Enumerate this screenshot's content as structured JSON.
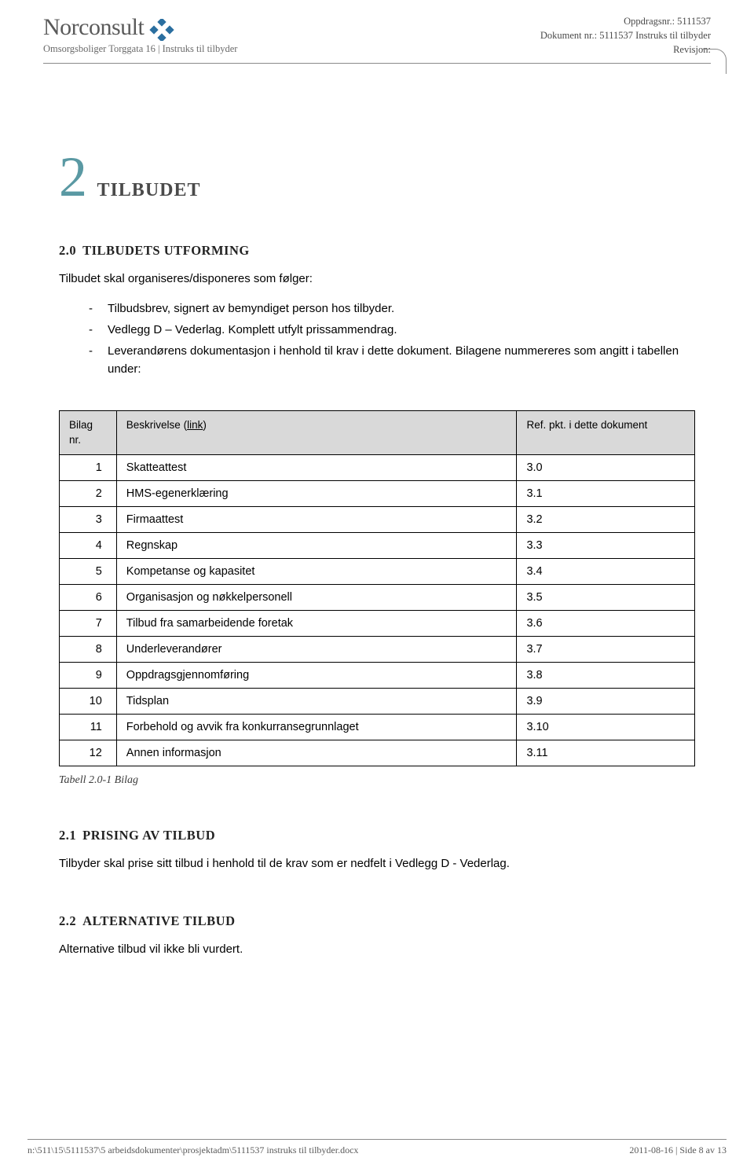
{
  "header": {
    "logo_text": "Norconsult",
    "subtitle": "Omsorgsboliger Torggata 16 | Instruks til tilbyder",
    "meta_line1": "Oppdragsnr.: 5111537",
    "meta_line2": "Dokument nr.: 5111537 Instruks til tilbyder",
    "meta_line3": "Revisjon:",
    "logo_color": "#2b6fa0"
  },
  "chapter": {
    "number": "2",
    "title": "TILBUDET"
  },
  "section20": {
    "num": "2.0",
    "title": "TILBUDETS UTFORMING",
    "intro": "Tilbudet skal organiseres/disponeres som følger:",
    "bullets": [
      "Tilbudsbrev, signert av bemyndiget person hos tilbyder.",
      "Vedlegg D – Vederlag. Komplett utfylt prissammendrag.",
      "Leverandørens dokumentasjon i henhold til krav i dette dokument. Bilagene nummereres som angitt i tabellen under:"
    ]
  },
  "table": {
    "h1a": "Bilag",
    "h1b": "nr.",
    "h2a": "Beskrivelse (",
    "h2_link": "link",
    "h2b": ")",
    "h3": "Ref. pkt. i dette dokument",
    "rows": [
      {
        "nr": "1",
        "desc": "Skatteattest",
        "ref": "3.0"
      },
      {
        "nr": "2",
        "desc": "HMS-egenerklæring",
        "ref": "3.1"
      },
      {
        "nr": "3",
        "desc": "Firmaattest",
        "ref": "3.2"
      },
      {
        "nr": "4",
        "desc": "Regnskap",
        "ref": "3.3"
      },
      {
        "nr": "5",
        "desc": "Kompetanse og kapasitet",
        "ref": "3.4"
      },
      {
        "nr": "6",
        "desc": "Organisasjon og nøkkelpersonell",
        "ref": "3.5"
      },
      {
        "nr": "7",
        "desc": "Tilbud fra samarbeidende foretak",
        "ref": "3.6"
      },
      {
        "nr": "8",
        "desc": "Underleverandører",
        "ref": "3.7"
      },
      {
        "nr": "9",
        "desc": "Oppdragsgjennomføring",
        "ref": "3.8"
      },
      {
        "nr": "10",
        "desc": "Tidsplan",
        "ref": "3.9"
      },
      {
        "nr": "11",
        "desc": "Forbehold og avvik fra konkurransegrunnlaget",
        "ref": "3.10"
      },
      {
        "nr": "12",
        "desc": "Annen informasjon",
        "ref": "3.11"
      }
    ],
    "caption": "Tabell 2.0-1 Bilag"
  },
  "section21": {
    "num": "2.1",
    "title": "PRISING AV TILBUD",
    "text": "Tilbyder skal prise sitt tilbud i henhold til de krav som er nedfelt i Vedlegg D - Vederlag."
  },
  "section22": {
    "num": "2.2",
    "title": "ALTERNATIVE TILBUD",
    "text": "Alternative tilbud vil ikke bli vurdert."
  },
  "footer": {
    "left": "n:\\511\\15\\5111537\\5 arbeidsdokumenter\\prosjektadm\\5111537 instruks til tilbyder.docx",
    "right": "2011-08-16 | Side 8 av 13"
  }
}
